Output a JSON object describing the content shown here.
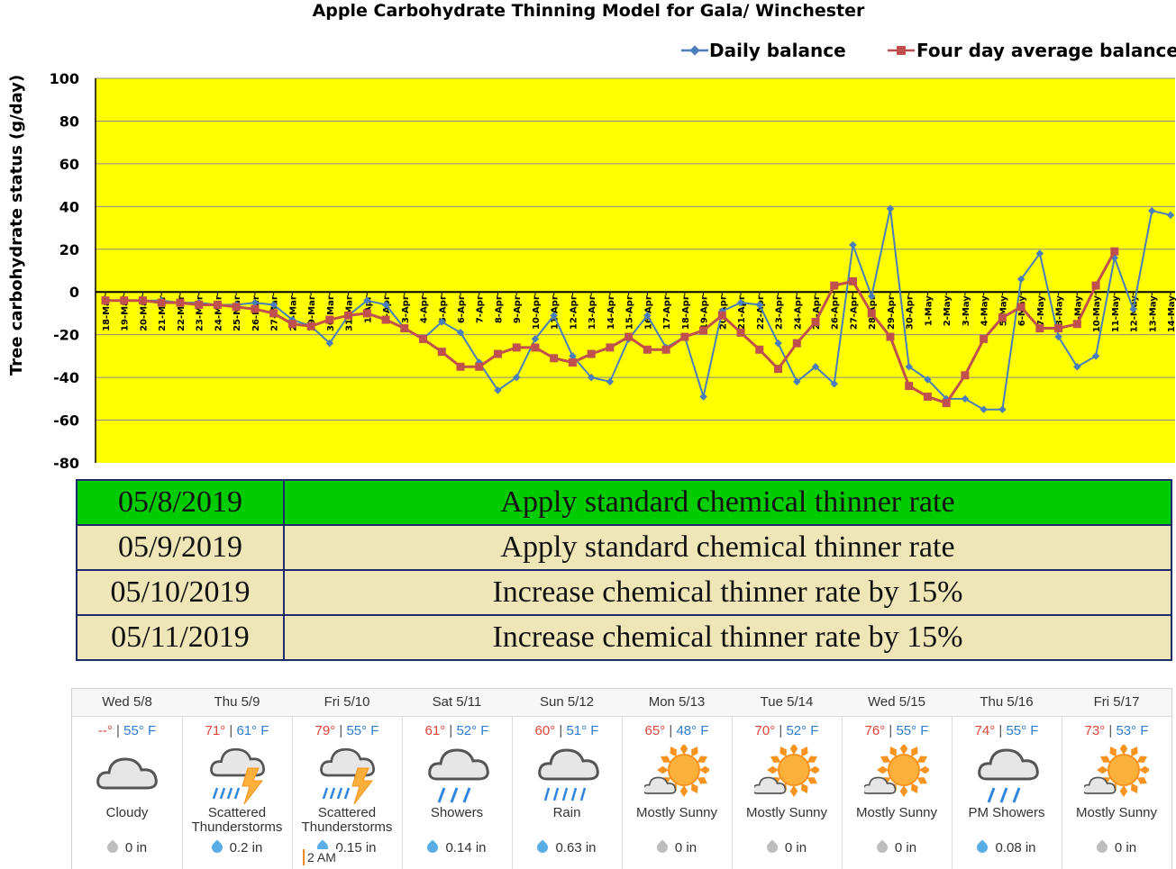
{
  "chart_data": {
    "type": "line",
    "title": "Apple Carbohydrate Thinning Model for Gala/ Winchester",
    "ylabel": "Tree carbohydrate status (g/day)",
    "xlabel": "",
    "ylim": [
      -80,
      100
    ],
    "yticks": [
      -80,
      -60,
      -40,
      -20,
      0,
      20,
      40,
      60,
      80,
      100
    ],
    "grid": true,
    "legend_position": "top-right",
    "plot_background": "#ffff00",
    "categories": [
      "18-Mar",
      "19-Mar",
      "20-Mar",
      "21-Mar",
      "22-Mar",
      "23-Mar",
      "24-Mar",
      "25-Mar",
      "26-Mar",
      "27-Mar",
      "28-Mar",
      "29-Mar",
      "30-Mar",
      "31-Mar",
      "1-Apr",
      "2-Apr",
      "3-Apr",
      "4-Apr",
      "5-Apr",
      "6-Apr",
      "7-Apr",
      "8-Apr",
      "9-Apr",
      "10-Apr",
      "11-Apr",
      "12-Apr",
      "13-Apr",
      "14-Apr",
      "15-Apr",
      "16-Apr",
      "17-Apr",
      "18-Apr",
      "19-Apr",
      "20-Apr",
      "21-Apr",
      "22-Apr",
      "23-Apr",
      "24-Apr",
      "25-Apr",
      "26-Apr",
      "27-Apr",
      "28-Apr",
      "29-Apr",
      "30-Apr",
      "1-May",
      "2-May",
      "3-May",
      "4-May",
      "5-May",
      "6-May",
      "7-May",
      "8-May",
      "9-May",
      "10-May",
      "11-May",
      "12-May",
      "13-May",
      "14-May"
    ],
    "series": [
      {
        "name": "Daily balance",
        "color": "#4a7ebb",
        "marker": "diamond",
        "values": [
          -4,
          -4,
          -4,
          -4,
          -5,
          -5,
          -6,
          -6,
          -5,
          -6,
          -13,
          -16,
          -24,
          -11,
          -4,
          -6,
          -17,
          -22,
          -14,
          -19,
          -33,
          -46,
          -40,
          -22,
          -11,
          -30,
          -40,
          -42,
          -22,
          -11,
          -26,
          -21,
          -49,
          -9,
          -5,
          -6,
          -24,
          -42,
          -35,
          -43,
          22,
          -2,
          39,
          -35,
          -41,
          -50,
          -50,
          -55,
          -55,
          6,
          18,
          -21,
          -35,
          -30,
          16,
          -8,
          38,
          36
        ]
      },
      {
        "name": "Four day average balance",
        "color": "#c0504d",
        "marker": "square",
        "values": [
          -4,
          -4,
          -4,
          -5,
          -5,
          -6,
          -6,
          -7,
          -8,
          -10,
          -15,
          -16,
          -13,
          -11,
          -10,
          -13,
          -17,
          -22,
          -28,
          -35,
          -35,
          -29,
          -26,
          -26,
          -31,
          -33,
          -29,
          -26,
          -21,
          -27,
          -27,
          -21,
          -18,
          -11,
          -19,
          -27,
          -36,
          -24,
          -14,
          3,
          5,
          -10,
          -21,
          -44,
          -49,
          -52,
          -39,
          -22,
          -12,
          -7,
          -17,
          -17,
          -15,
          3,
          19,
          null,
          null,
          null
        ]
      }
    ]
  },
  "recommendations": [
    {
      "date": "05/8/2019",
      "text": "Apply standard chemical thinner rate",
      "bg": "#00cc00"
    },
    {
      "date": "05/9/2019",
      "text": "Apply standard chemical thinner rate",
      "bg": "#efe6b8"
    },
    {
      "date": "05/10/2019",
      "text": "Increase chemical thinner rate by 15%",
      "bg": "#efe6b8"
    },
    {
      "date": "05/11/2019",
      "text": "Increase chemical thinner rate by 15%",
      "bg": "#efe6b8"
    }
  ],
  "forecast": [
    {
      "day": "Wed 5/8",
      "hi": "--°",
      "lo": "55° F",
      "cond": "Cloudy",
      "precip": "0 in",
      "icon": "cloud-icon",
      "drop": "g"
    },
    {
      "day": "Thu 5/9",
      "hi": "71°",
      "lo": "61° F",
      "cond": "Scattered Thunderstorms",
      "precip": "0.2 in",
      "icon": "thunderstorm-icon",
      "drop": "b"
    },
    {
      "day": "Fri 5/10",
      "hi": "79°",
      "lo": "55° F",
      "cond": "Scattered Thunderstorms",
      "precip": "0.15 in",
      "icon": "thunderstorm-icon",
      "drop": "b"
    },
    {
      "day": "Sat 5/11",
      "hi": "61°",
      "lo": "52° F",
      "cond": "Showers",
      "precip": "0.14 in",
      "icon": "showers-icon",
      "drop": "b"
    },
    {
      "day": "Sun 5/12",
      "hi": "60°",
      "lo": "51° F",
      "cond": "Rain",
      "precip": "0.63 in",
      "icon": "rain-icon",
      "drop": "b"
    },
    {
      "day": "Mon 5/13",
      "hi": "65°",
      "lo": "48° F",
      "cond": "Mostly Sunny",
      "precip": "0 in",
      "icon": "mostly-sunny-icon",
      "drop": "g"
    },
    {
      "day": "Tue 5/14",
      "hi": "70°",
      "lo": "52° F",
      "cond": "Mostly Sunny",
      "precip": "0 in",
      "icon": "mostly-sunny-icon",
      "drop": "g"
    },
    {
      "day": "Wed 5/15",
      "hi": "76°",
      "lo": "55° F",
      "cond": "Mostly Sunny",
      "precip": "0 in",
      "icon": "mostly-sunny-icon",
      "drop": "g"
    },
    {
      "day": "Thu 5/16",
      "hi": "74°",
      "lo": "55° F",
      "cond": "PM Showers",
      "precip": "0.08 in",
      "icon": "showers-icon",
      "drop": "b"
    },
    {
      "day": "Fri 5/17",
      "hi": "73°",
      "lo": "53° F",
      "cond": "Mostly Sunny",
      "precip": "0 in",
      "icon": "mostly-sunny-icon",
      "drop": "g"
    }
  ],
  "tooltip": "2 AM"
}
